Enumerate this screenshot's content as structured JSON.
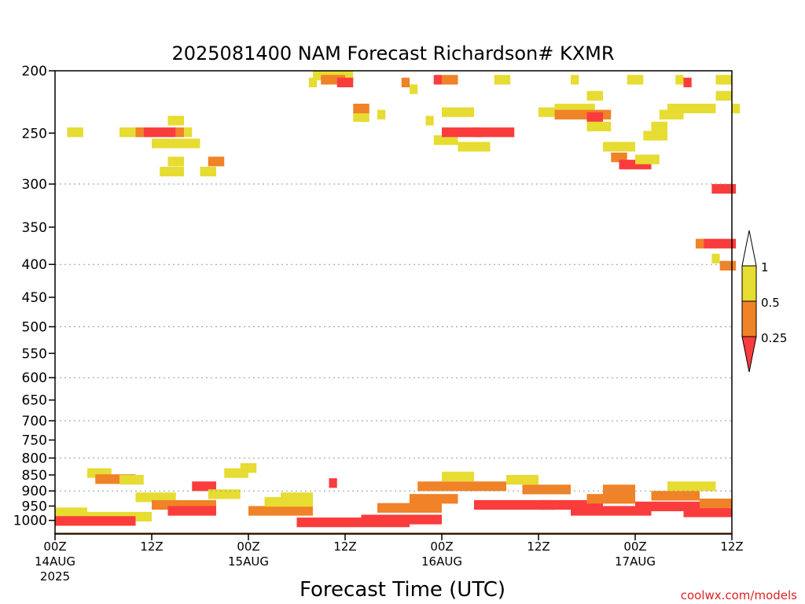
{
  "chart_data": {
    "type": "heatmap",
    "title": "2025081400 NAM Forecast Richardson# KXMR",
    "xlabel": "Forecast Time (UTC)",
    "ylabel": "",
    "credit": "coolwx.com/models",
    "y_scale": "log-pressure, inverted",
    "ylim": [
      1050,
      200
    ],
    "xlim_hours": [
      0,
      84
    ],
    "grid": "dotted horizontal lines at 300-800 hPa",
    "y_ticks": [
      200,
      250,
      300,
      350,
      400,
      450,
      500,
      550,
      600,
      650,
      700,
      750,
      800,
      850,
      900,
      950,
      1000
    ],
    "y_tick_labels": [
      "200",
      "250",
      "300",
      "350",
      "400",
      "450",
      "500",
      "550",
      "600",
      "650",
      "700",
      "750",
      "800",
      "850",
      "900",
      "950",
      "1000"
    ],
    "grid_levels": [
      300,
      400,
      500,
      600,
      700,
      800,
      900
    ],
    "x_ticks": [
      {
        "hour": 0,
        "label": "00Z",
        "date": "14AUG",
        "year": "2025"
      },
      {
        "hour": 12,
        "label": "12Z",
        "date": "",
        "year": ""
      },
      {
        "hour": 24,
        "label": "00Z",
        "date": "15AUG",
        "year": ""
      },
      {
        "hour": 36,
        "label": "12Z",
        "date": "",
        "year": ""
      },
      {
        "hour": 48,
        "label": "00Z",
        "date": "16AUG",
        "year": ""
      },
      {
        "hour": 60,
        "label": "12Z",
        "date": "",
        "year": ""
      },
      {
        "hour": 72,
        "label": "00Z",
        "date": "17AUG",
        "year": ""
      },
      {
        "hour": 84,
        "label": "12Z",
        "date": "",
        "year": ""
      }
    ],
    "colorbar": {
      "levels": [
        "1",
        "0.5",
        "0.25"
      ],
      "colors": {
        "lt1": "#e6dc32",
        "lt05": "#f08228",
        "lt025": "#fa3c3c"
      },
      "placement": "right"
    },
    "colors": {
      "ground": "#8b4513",
      "grid": "#999999"
    },
    "cells": [
      [
        1.5,
        245,
        2,
        1
      ],
      [
        8,
        245,
        3,
        1
      ],
      [
        10,
        245,
        1,
        2
      ],
      [
        11,
        245,
        4,
        3
      ],
      [
        15,
        245,
        1,
        2
      ],
      [
        16,
        245,
        1,
        1
      ],
      [
        12,
        255,
        6,
        1
      ],
      [
        14,
        272,
        2,
        1
      ],
      [
        13,
        282,
        3,
        1
      ],
      [
        14,
        235,
        2,
        1
      ],
      [
        18,
        282,
        2,
        1
      ],
      [
        19,
        272,
        2,
        2
      ],
      [
        31.5,
        205,
        1,
        1
      ],
      [
        32,
        200,
        5,
        1
      ],
      [
        33,
        203,
        3,
        2
      ],
      [
        35,
        205,
        2,
        3
      ],
      [
        37,
        232,
        2,
        1
      ],
      [
        37,
        225,
        2,
        2
      ],
      [
        40,
        230,
        1,
        1
      ],
      [
        43,
        205,
        1,
        2
      ],
      [
        44,
        210,
        1,
        1
      ],
      [
        46,
        235,
        1,
        1
      ],
      [
        47,
        203,
        1,
        3
      ],
      [
        48,
        203,
        2,
        2
      ],
      [
        48,
        228,
        4,
        1
      ],
      [
        47,
        252,
        3,
        1
      ],
      [
        48,
        245,
        5,
        3
      ],
      [
        52,
        245,
        5,
        3
      ],
      [
        50,
        258,
        4,
        1
      ],
      [
        54.5,
        203,
        2,
        1
      ],
      [
        60,
        228,
        2,
        1
      ],
      [
        62,
        225,
        5,
        1
      ],
      [
        62,
        230,
        7,
        2
      ],
      [
        66,
        232,
        2,
        3
      ],
      [
        64,
        203,
        1,
        1
      ],
      [
        66,
        215,
        2,
        1
      ],
      [
        66,
        240,
        3,
        1
      ],
      [
        68,
        258,
        4,
        1
      ],
      [
        69,
        268,
        2,
        2
      ],
      [
        70,
        275,
        4,
        3
      ],
      [
        72,
        270,
        3,
        1
      ],
      [
        71,
        203,
        2,
        1
      ],
      [
        73,
        248,
        3,
        1
      ],
      [
        74,
        240,
        2,
        1
      ],
      [
        75,
        230,
        3,
        1
      ],
      [
        76,
        225,
        4,
        1
      ],
      [
        77,
        203,
        1,
        1
      ],
      [
        78,
        205,
        1,
        3
      ],
      [
        80,
        225,
        2,
        1
      ],
      [
        82,
        203,
        2,
        1
      ],
      [
        82,
        215,
        2,
        1
      ],
      [
        84,
        225,
        1,
        1
      ],
      [
        81.5,
        300,
        3,
        3
      ],
      [
        79.5,
        365,
        1,
        2
      ],
      [
        80.5,
        365,
        4,
        3
      ],
      [
        81.5,
        385,
        1,
        1
      ],
      [
        82.5,
        395,
        2,
        2
      ]
    ],
    "low_cells": [
      [
        0,
        955,
        4,
        1
      ],
      [
        0,
        970,
        12,
        1
      ],
      [
        0,
        985,
        10,
        3
      ],
      [
        4,
        830,
        3,
        1
      ],
      [
        5,
        848,
        5,
        2
      ],
      [
        8,
        850,
        3,
        1
      ],
      [
        10,
        905,
        5,
        1
      ],
      [
        12,
        930,
        8,
        2
      ],
      [
        14,
        950,
        6,
        3
      ],
      [
        17,
        870,
        3,
        3
      ],
      [
        19,
        895,
        4,
        1
      ],
      [
        21,
        830,
        3,
        1
      ],
      [
        23,
        815,
        2,
        1
      ],
      [
        24,
        950,
        8,
        2
      ],
      [
        26,
        920,
        6,
        1
      ],
      [
        28,
        905,
        4,
        1
      ],
      [
        34,
        860,
        1,
        3
      ],
      [
        30,
        990,
        14,
        3
      ],
      [
        38,
        980,
        10,
        3
      ],
      [
        40,
        940,
        8,
        2
      ],
      [
        44,
        910,
        6,
        2
      ],
      [
        45,
        870,
        5,
        2
      ],
      [
        48,
        840,
        4,
        1
      ],
      [
        50,
        870,
        6,
        2
      ],
      [
        52,
        930,
        10,
        3
      ],
      [
        56,
        850,
        4,
        1
      ],
      [
        58,
        880,
        6,
        2
      ],
      [
        60,
        930,
        8,
        3
      ],
      [
        64,
        950,
        10,
        3
      ],
      [
        66,
        910,
        6,
        2
      ],
      [
        68,
        880,
        4,
        2
      ],
      [
        72,
        935,
        8,
        3
      ],
      [
        74,
        900,
        6,
        2
      ],
      [
        76,
        870,
        6,
        1
      ],
      [
        78,
        955,
        6,
        3
      ],
      [
        80,
        925,
        4,
        2
      ]
    ]
  }
}
